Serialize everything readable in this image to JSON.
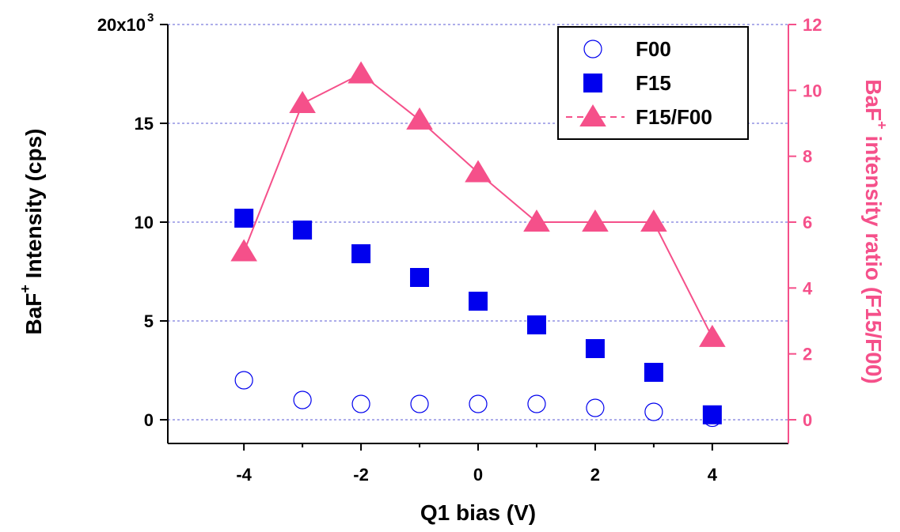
{
  "chart_data": {
    "type": "scatter",
    "x": [
      -4,
      -3,
      -2,
      -1,
      0,
      1,
      2,
      3,
      4
    ],
    "xlabel": "Q1 bias (V)",
    "ylabel_left": {
      "prefix": "BaF",
      "sup": "+",
      "suffix": " Intensity (cps)"
    },
    "ylabel_right": {
      "prefix": "BaF",
      "sup": "+",
      "suffix": " intensity ratio (F15/F00)"
    },
    "xlim": [
      -5.3,
      5.3
    ],
    "ylim_left": [
      -1200,
      20000
    ],
    "ylim_right": [
      -0.72,
      12
    ],
    "x_ticks": [
      -4,
      -2,
      0,
      2,
      4
    ],
    "x_tick_labels": [
      "-4",
      "-2",
      "0",
      "2",
      "4"
    ],
    "y_left_ticks": [
      0,
      5000,
      10000,
      15000,
      20000
    ],
    "y_left_tick_labels": [
      "0",
      "5",
      "10",
      "15",
      "20x10"
    ],
    "y_left_multiplier_exponent": "3",
    "y_right_ticks": [
      0,
      2,
      4,
      6,
      8,
      10,
      12
    ],
    "y_right_tick_labels": [
      "0",
      "2",
      "4",
      "6",
      "8",
      "10",
      "12"
    ],
    "grid": true,
    "legend_position": "top-right",
    "series": [
      {
        "name": "F00",
        "axis": "left",
        "marker": "open-circle",
        "color": "#0000ee",
        "values": [
          2000,
          1000,
          800,
          800,
          800,
          800,
          600,
          400,
          100
        ]
      },
      {
        "name": "F15",
        "axis": "left",
        "marker": "filled-square",
        "color": "#0000ee",
        "values": [
          10200,
          9600,
          8400,
          7200,
          6000,
          4800,
          3600,
          2400,
          250
        ]
      },
      {
        "name": "F15/F00",
        "axis": "right",
        "marker": "filled-triangle",
        "line": true,
        "color": "#f5508a",
        "values": [
          5.1,
          9.6,
          10.5,
          9.1,
          7.5,
          6.0,
          6.0,
          6.0,
          2.5
        ]
      }
    ]
  }
}
